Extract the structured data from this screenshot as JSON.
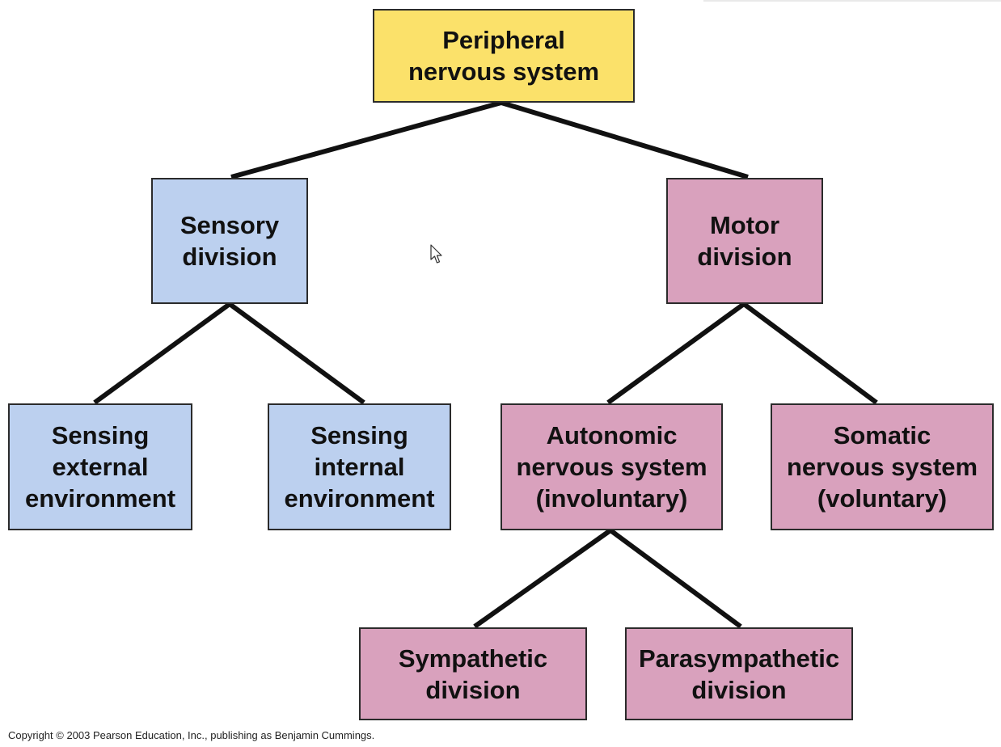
{
  "diagram": {
    "nodes": {
      "pns": "Peripheral\nnervous system",
      "sensory": "Sensory\ndivision",
      "motor": "Motor\ndivision",
      "external": "Sensing\nexternal\nenvironment",
      "internal": "Sensing\ninternal\nenvironment",
      "autonomic": "Autonomic\nnervous system\n(involuntary)",
      "somatic": "Somatic\nnervous system\n(voluntary)",
      "sympathetic": "Sympathetic\ndivision",
      "parasympathetic": "Parasympathetic\ndivision"
    },
    "edges": [
      [
        "pns",
        "sensory"
      ],
      [
        "pns",
        "motor"
      ],
      [
        "sensory",
        "external"
      ],
      [
        "sensory",
        "internal"
      ],
      [
        "motor",
        "autonomic"
      ],
      [
        "motor",
        "somatic"
      ],
      [
        "autonomic",
        "sympathetic"
      ],
      [
        "autonomic",
        "parasympathetic"
      ]
    ],
    "colors": {
      "root": "#fbe16a",
      "sensory": "#bcd0ef",
      "motor": "#d9a1bd",
      "line": "#111111"
    }
  },
  "footer": {
    "copyright": "Copyright © 2003 Pearson Education, Inc., publishing as Benjamin Cummings."
  },
  "cursor_icon": "mouse-pointer-icon"
}
